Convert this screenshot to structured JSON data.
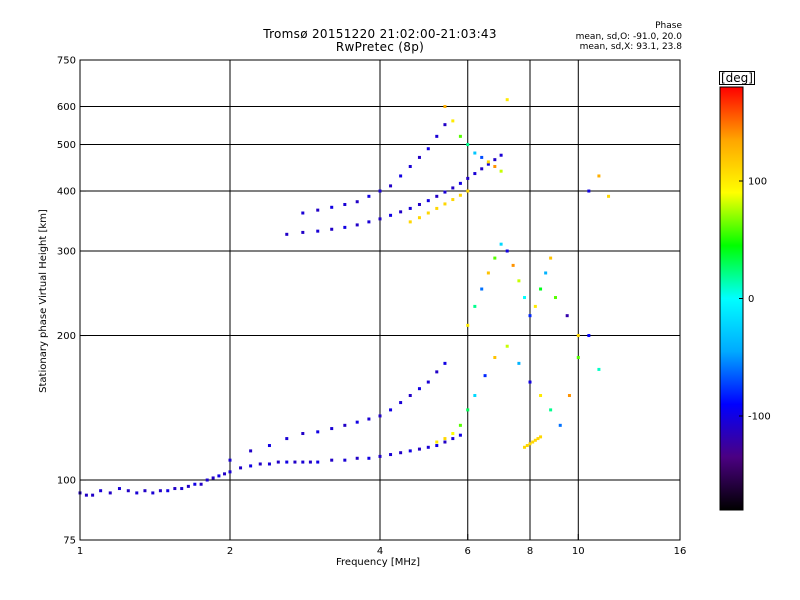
{
  "header": {
    "title_line1": "Tromsø 20151220 21:02:00-21:03:43",
    "title_line2": "RwPretec (8p)",
    "phase_heading": "Phase",
    "phase_o": "mean, sd,O: -91.0, 20.0",
    "phase_x": "mean, sd,X:  93.1, 23.8"
  },
  "chart_data": {
    "type": "scatter",
    "title": "Tromsø 20151220 21:02:00-21:03:43",
    "subtitle": "RwPretec (8p)",
    "xlabel": "Frequency [MHz]",
    "ylabel": "Stationary phase Virtual Height [km]",
    "x_scale": "log",
    "y_scale": "log",
    "xlim": [
      1,
      16
    ],
    "ylim": [
      75,
      750
    ],
    "x_ticks": [
      1,
      2,
      4,
      6,
      8,
      10,
      16
    ],
    "x_grid": [
      2,
      4,
      6,
      8,
      10
    ],
    "y_ticks": [
      75,
      100,
      200,
      300,
      400,
      500,
      600,
      750
    ],
    "y_grid": [
      100,
      200,
      300,
      400,
      500,
      600
    ],
    "grid": true,
    "colorbar": {
      "label": "[deg]",
      "range": [
        -180,
        180
      ],
      "ticks": [
        -100,
        0,
        100
      ],
      "colors": [
        "#000000",
        "#4b0082",
        "#0000ff",
        "#00aaff",
        "#00ffff",
        "#00ff00",
        "#ffff00",
        "#ffa500",
        "#ff0000"
      ]
    },
    "series": [
      {
        "x": [
          1.0,
          1.03,
          1.06,
          1.1,
          1.15,
          1.2,
          1.25,
          1.3,
          1.35,
          1.4,
          1.45,
          1.5,
          1.55,
          1.6,
          1.65,
          1.7,
          1.75,
          1.8,
          1.85,
          1.9,
          1.95,
          2.0,
          2.1,
          2.2,
          2.3,
          2.4,
          2.5,
          2.6,
          2.7,
          2.8,
          2.9,
          3.0,
          3.2,
          3.4,
          3.6,
          3.8,
          4.0,
          4.2,
          4.4,
          4.6,
          4.8,
          5.0,
          5.2,
          5.4,
          5.6,
          5.8
        ],
        "y": [
          94,
          93,
          93,
          95,
          94,
          96,
          95,
          94,
          95,
          94,
          95,
          95,
          96,
          96,
          97,
          98,
          98,
          100,
          101,
          102,
          103,
          104,
          106,
          107,
          108,
          108,
          109,
          109,
          109,
          109,
          109,
          109,
          110,
          110,
          111,
          111,
          112,
          113,
          114,
          115,
          116,
          117,
          118,
          120,
          122,
          124
        ],
        "c": [
          -110,
          -110,
          -110,
          -105,
          -110,
          -105,
          -110,
          -105,
          -110,
          -105,
          -110,
          -100,
          -110,
          -105,
          -110,
          -100,
          -110,
          -105,
          -110,
          -100,
          -110,
          -105,
          -110,
          -100,
          -110,
          -105,
          -110,
          -100,
          -110,
          -105,
          -110,
          -100,
          -110,
          -105,
          -110,
          -100,
          -110,
          -105,
          -110,
          -100,
          -110,
          -105,
          -100,
          -110,
          -105,
          -100
        ]
      },
      {
        "x": [
          2.0,
          2.2,
          2.4,
          2.6,
          2.8,
          3.0,
          3.2,
          3.4,
          3.6,
          3.8,
          4.0,
          4.2,
          4.4,
          4.6,
          4.8,
          5.0,
          5.2,
          5.4
        ],
        "y": [
          110,
          115,
          118,
          122,
          125,
          126,
          128,
          130,
          132,
          134,
          136,
          140,
          145,
          150,
          155,
          160,
          168,
          175
        ],
        "c": [
          -105,
          -110,
          -100,
          -105,
          -110,
          -100,
          -105,
          -110,
          -100,
          -105,
          -110,
          -100,
          -105,
          -110,
          -100,
          -105,
          -110,
          -100
        ]
      },
      {
        "x": [
          5.2,
          5.4,
          5.6,
          5.8,
          6.0,
          6.2,
          6.5,
          6.8,
          7.2,
          7.6,
          8.0,
          8.4,
          8.8,
          9.2,
          9.6,
          10.0,
          10.5,
          11.0
        ],
        "y": [
          120,
          122,
          125,
          130,
          140,
          150,
          165,
          180,
          190,
          175,
          160,
          150,
          140,
          130,
          150,
          180,
          200,
          170
        ],
        "c": [
          100,
          110,
          90,
          60,
          30,
          -20,
          -80,
          120,
          80,
          -40,
          -100,
          100,
          20,
          -60,
          140,
          60,
          -90,
          10
        ]
      },
      {
        "x": [
          7.8,
          7.9,
          8.0,
          8.1,
          8.2,
          8.3,
          8.4
        ],
        "y": [
          117,
          118,
          119,
          120,
          121,
          122,
          123
        ],
        "c": [
          110,
          110,
          110,
          110,
          110,
          110,
          110
        ]
      },
      {
        "x": [
          2.6,
          2.8,
          3.0,
          3.2,
          3.4,
          3.6,
          3.8,
          4.0,
          4.2,
          4.4,
          4.6,
          4.8,
          5.0,
          5.2,
          5.4,
          5.6,
          5.8,
          6.0,
          6.2,
          6.4,
          6.6,
          6.8,
          7.0
        ],
        "y": [
          325,
          328,
          330,
          333,
          336,
          340,
          345,
          350,
          356,
          362,
          368,
          375,
          382,
          390,
          398,
          406,
          415,
          425,
          435,
          445,
          455,
          465,
          475
        ],
        "c": [
          -110,
          -110,
          -105,
          -110,
          -100,
          -110,
          -105,
          -110,
          -100,
          -110,
          -105,
          -110,
          -100,
          -110,
          -105,
          -110,
          -100,
          -110,
          -105,
          -110,
          -100,
          -110,
          -105
        ]
      },
      {
        "x": [
          4.6,
          4.8,
          5.0,
          5.2,
          5.4,
          5.6,
          5.8,
          6.0
        ],
        "y": [
          345,
          352,
          360,
          368,
          376,
          384,
          392,
          400
        ],
        "c": [
          110,
          110,
          110,
          110,
          110,
          110,
          110,
          110
        ]
      },
      {
        "x": [
          2.8,
          3.0,
          3.2,
          3.4,
          3.6,
          3.8,
          4.0,
          4.2,
          4.4,
          4.6,
          4.8,
          5.0,
          5.2,
          5.4
        ],
        "y": [
          360,
          365,
          370,
          375,
          380,
          390,
          400,
          410,
          430,
          450,
          470,
          490,
          520,
          550
        ],
        "c": [
          -105,
          -110,
          -100,
          -105,
          -110,
          -100,
          -105,
          -110,
          -100,
          -105,
          -110,
          -100,
          -105,
          -110
        ]
      },
      {
        "x": [
          5.4,
          5.6,
          5.8,
          6.0,
          6.2,
          6.4,
          6.6,
          6.8,
          7.0,
          7.2
        ],
        "y": [
          600,
          560,
          520,
          500,
          480,
          470,
          460,
          450,
          440,
          620
        ],
        "c": [
          130,
          100,
          60,
          20,
          -30,
          -70,
          110,
          140,
          80,
          100
        ]
      },
      {
        "x": [
          6.0,
          6.2,
          6.4,
          6.6,
          6.8,
          7.0,
          7.2,
          7.4,
          7.6,
          7.8,
          8.0,
          8.2,
          8.4,
          8.6,
          8.8,
          9.0,
          9.5,
          10.0,
          10.5,
          11.0,
          11.5
        ],
        "y": [
          210,
          230,
          250,
          270,
          290,
          310,
          300,
          280,
          260,
          240,
          220,
          230,
          250,
          270,
          290,
          240,
          220,
          200,
          400,
          430,
          390
        ],
        "c": [
          100,
          20,
          -60,
          120,
          60,
          -20,
          -100,
          140,
          80,
          0,
          -80,
          100,
          40,
          -40,
          120,
          60,
          -120,
          110,
          -100,
          130,
          110
        ]
      }
    ],
    "annotations": []
  }
}
